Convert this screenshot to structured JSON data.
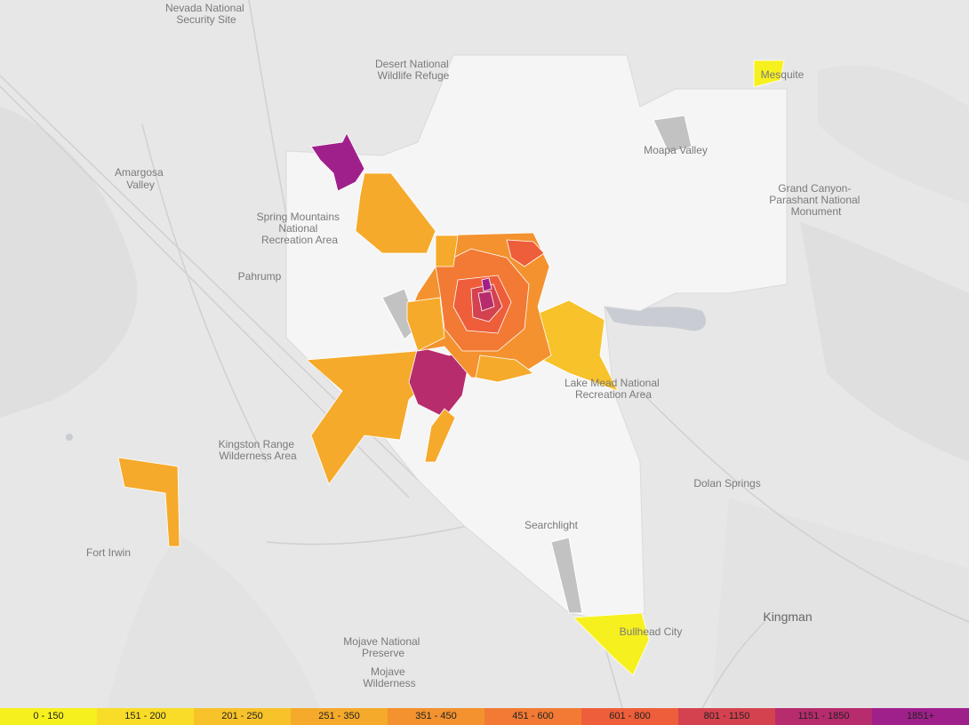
{
  "map": {
    "place_labels": [
      {
        "lines": [
          "Nevada National",
          "Security Site"
        ]
      },
      {
        "lines": [
          "Desert National",
          "Wildlife Refuge"
        ]
      },
      {
        "lines": [
          "Amargosa",
          "Valley"
        ]
      },
      {
        "lines": [
          "Spring Mountains",
          "National",
          "Recreation Area"
        ]
      },
      {
        "lines": [
          "Pahrump"
        ]
      },
      {
        "lines": [
          "Moapa Valley"
        ]
      },
      {
        "lines": [
          "Mesquite"
        ]
      },
      {
        "lines": [
          "Grand Canyon-",
          "Parashant National",
          "Monument"
        ]
      },
      {
        "lines": [
          "Lake Mead National",
          "Recreation Area"
        ]
      },
      {
        "lines": [
          "Kingston Range",
          "Wilderness Area"
        ]
      },
      {
        "lines": [
          "Dolan Springs"
        ]
      },
      {
        "lines": [
          "Searchlight"
        ]
      },
      {
        "lines": [
          "Fort Irwin"
        ]
      },
      {
        "lines": [
          "Kingman"
        ]
      },
      {
        "lines": [
          "Bullhead City"
        ]
      },
      {
        "lines": [
          "Mojave National",
          "Preserve"
        ]
      },
      {
        "lines": [
          "Mojave",
          "Wilderness"
        ]
      }
    ]
  },
  "legend": {
    "items": [
      {
        "label": "0 - 150",
        "color": "#f7f01f"
      },
      {
        "label": "151 - 200",
        "color": "#f9dc27"
      },
      {
        "label": "201 - 250",
        "color": "#f7c22a"
      },
      {
        "label": "251 - 350",
        "color": "#f5aa2b"
      },
      {
        "label": "351 - 450",
        "color": "#f3922e"
      },
      {
        "label": "451 - 600",
        "color": "#f27a34"
      },
      {
        "label": "601 - 800",
        "color": "#ee5e3a"
      },
      {
        "label": "801 - 1150",
        "color": "#d4424f"
      },
      {
        "label": "1151 - 1850",
        "color": "#b72c6c"
      },
      {
        "label": "1851+",
        "color": "#a0208b"
      }
    ]
  },
  "colors": {
    "nodata": "#c2c2c2",
    "low": "#f5f5f5"
  }
}
